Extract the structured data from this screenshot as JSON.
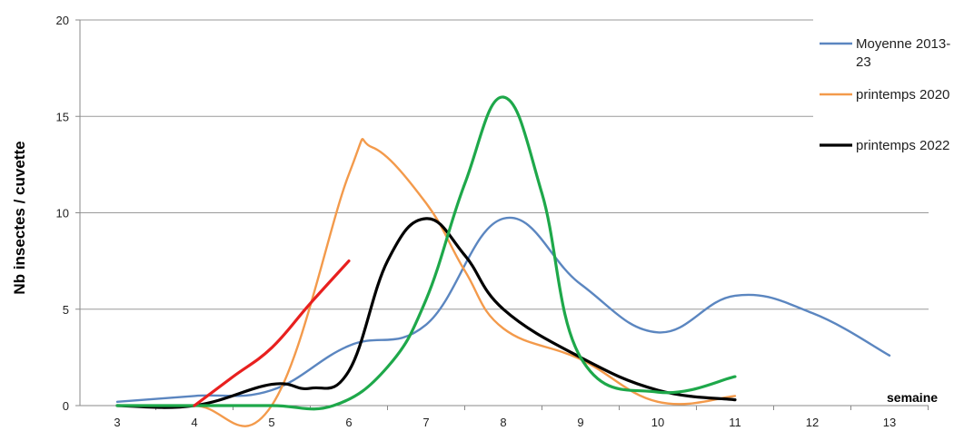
{
  "chart_data": {
    "type": "line",
    "ylabel": "Nb insectes / cuvette",
    "xlabel": "semaine",
    "x_ticks": [
      3,
      4,
      5,
      6,
      7,
      8,
      9,
      10,
      11,
      12,
      13
    ],
    "y_ticks": [
      0,
      5,
      10,
      15,
      20
    ],
    "xlim": [
      3,
      13
    ],
    "ylim": [
      0,
      20
    ],
    "grid": "horizontal",
    "legend_position": "right",
    "series": [
      {
        "name": "Moyenne 2013-23",
        "legend_lines": [
          "Moyenne 2013-",
          "23"
        ],
        "color": "#5b86c0",
        "in_legend": true,
        "points": [
          [
            3,
            0.2
          ],
          [
            4,
            0.5
          ],
          [
            5,
            0.8
          ],
          [
            6,
            3.1
          ],
          [
            7,
            4.2
          ],
          [
            8,
            9.7
          ],
          [
            9,
            6.3
          ],
          [
            10,
            3.8
          ],
          [
            11,
            5.7
          ],
          [
            12,
            4.8
          ],
          [
            13,
            2.6
          ]
        ]
      },
      {
        "name": "printemps 2020",
        "legend_lines": [
          "printemps 2020"
        ],
        "color": "#f39a4b",
        "in_legend": true,
        "points": [
          [
            3,
            0
          ],
          [
            4,
            0
          ],
          [
            5,
            0
          ],
          [
            6,
            12.0
          ],
          [
            6.3,
            13.4
          ],
          [
            7,
            10.5
          ],
          [
            7.5,
            7.0
          ],
          [
            8,
            4.0
          ],
          [
            9,
            2.4
          ],
          [
            10,
            0.2
          ],
          [
            11,
            0.5
          ]
        ]
      },
      {
        "name": "printemps 2022",
        "legend_lines": [
          "printemps 2022"
        ],
        "color": "#000000",
        "in_legend": true,
        "points": [
          [
            3,
            0
          ],
          [
            4,
            0
          ],
          [
            5,
            1.1
          ],
          [
            5.5,
            0.9
          ],
          [
            6,
            1.8
          ],
          [
            6.5,
            7.5
          ],
          [
            7,
            9.7
          ],
          [
            7.5,
            7.8
          ],
          [
            8,
            5.0
          ],
          [
            9,
            2.5
          ],
          [
            10,
            0.8
          ],
          [
            11,
            0.3
          ]
        ]
      },
      {
        "name": "",
        "legend_lines": [],
        "color": "#1ea84a",
        "in_legend": false,
        "points": [
          [
            3,
            0
          ],
          [
            4,
            0
          ],
          [
            5,
            0
          ],
          [
            5.8,
            0
          ],
          [
            6.5,
            2.0
          ],
          [
            7,
            5.5
          ],
          [
            7.5,
            11.5
          ],
          [
            8,
            16.0
          ],
          [
            8.5,
            11.0
          ],
          [
            9,
            2.5
          ],
          [
            10,
            0.7
          ],
          [
            11,
            1.5
          ]
        ]
      },
      {
        "name": "",
        "legend_lines": [],
        "color": "#e8201f",
        "in_legend": false,
        "points": [
          [
            4,
            0
          ],
          [
            4.5,
            1.5
          ],
          [
            5,
            3.0
          ],
          [
            5.5,
            5.3
          ],
          [
            6,
            7.5
          ]
        ]
      }
    ]
  }
}
